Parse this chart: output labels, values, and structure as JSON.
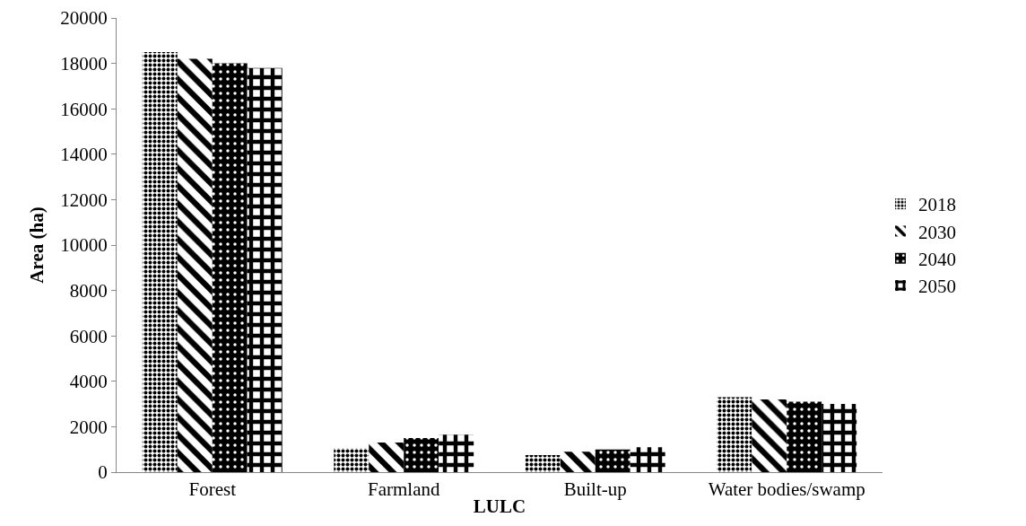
{
  "chart_data": {
    "type": "bar",
    "xlabel": "LULC",
    "ylabel": "Area (ha)",
    "categories": [
      "Forest",
      "Farmland",
      "Built-up",
      "Water bodies/swamp"
    ],
    "series": [
      {
        "name": "2018",
        "color": "#000000",
        "values": [
          18500,
          1050,
          750,
          3300
        ]
      },
      {
        "name": "2030",
        "color": "#000000",
        "values": [
          18200,
          1300,
          900,
          3200
        ]
      },
      {
        "name": "2040",
        "color": "#000000",
        "values": [
          18000,
          1500,
          1000,
          3100
        ]
      },
      {
        "name": "2050",
        "color": "#000000",
        "values": [
          17800,
          1650,
          1100,
          3000
        ]
      }
    ],
    "ylim": [
      0,
      20000
    ],
    "yticks": [
      0,
      2000,
      4000,
      6000,
      8000,
      10000,
      12000,
      14000,
      16000,
      18000,
      20000
    ],
    "grid": false,
    "legend": "right"
  }
}
